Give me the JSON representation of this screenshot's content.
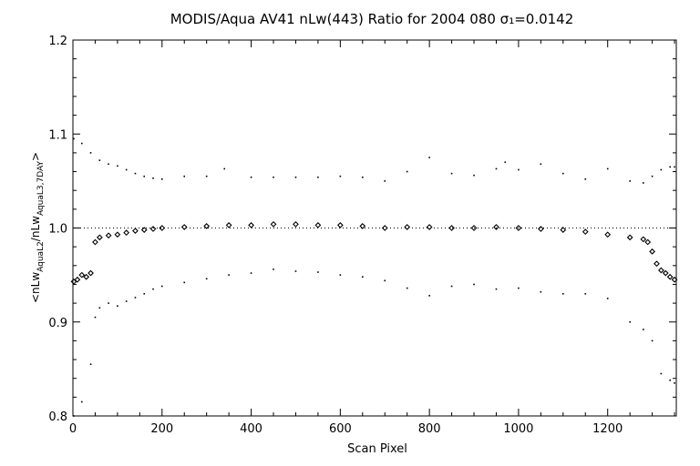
{
  "chart_data": {
    "type": "scatter",
    "title": "MODIS/Aqua AV41 nLw(443) Ratio for 2004 080 σ₁=0.0142",
    "xlabel": "Scan Pixel",
    "ylabel": "<nLw_Aqua L2 / nLw_Aqua L3 7DAY>",
    "ylabel_main_left": "<nLw",
    "ylabel_sub1": "AquaL2",
    "ylabel_mid": "/nLw",
    "ylabel_sub2": "AquaL3,7DAY",
    "ylabel_end": ">",
    "xlim": [
      0,
      1354
    ],
    "ylim": [
      0.8,
      1.2
    ],
    "xticks": [
      0,
      200,
      400,
      600,
      800,
      1000,
      1200
    ],
    "xtick_labels": [
      "0",
      "200",
      "400",
      "600",
      "800",
      "1000",
      "1200"
    ],
    "yticks": [
      0.8,
      0.9,
      1.0,
      1.1,
      1.2
    ],
    "ytick_labels": [
      "0.8",
      "0.9",
      "1.0",
      "1.1",
      "1.2"
    ],
    "reference_line": 1.0,
    "grid": false,
    "legend": "none",
    "series": [
      {
        "role": "mean",
        "marker": "diamond",
        "x": [
          2,
          10,
          20,
          30,
          40,
          50,
          60,
          80,
          100,
          120,
          140,
          160,
          180,
          200,
          250,
          300,
          350,
          400,
          450,
          500,
          550,
          600,
          650,
          700,
          750,
          800,
          850,
          900,
          950,
          1000,
          1050,
          1100,
          1150,
          1200,
          1250,
          1280,
          1290,
          1300,
          1310,
          1320,
          1330,
          1340,
          1350
        ],
        "y": [
          0.943,
          0.945,
          0.95,
          0.948,
          0.952,
          0.985,
          0.99,
          0.992,
          0.993,
          0.995,
          0.997,
          0.998,
          0.999,
          1.0,
          1.001,
          1.002,
          1.003,
          1.003,
          1.004,
          1.004,
          1.003,
          1.003,
          1.002,
          1.0,
          1.001,
          1.001,
          1.0,
          1.0,
          1.001,
          1.0,
          0.999,
          0.998,
          0.996,
          0.993,
          0.99,
          0.988,
          0.985,
          0.975,
          0.962,
          0.955,
          0.952,
          0.948,
          0.945
        ]
      },
      {
        "role": "upper",
        "marker": "dot",
        "x": [
          2,
          20,
          40,
          60,
          80,
          100,
          120,
          140,
          160,
          180,
          200,
          250,
          300,
          340,
          400,
          450,
          500,
          550,
          600,
          650,
          700,
          750,
          800,
          850,
          900,
          950,
          970,
          1000,
          1050,
          1100,
          1150,
          1200,
          1250,
          1280,
          1300,
          1320,
          1340,
          1350
        ],
        "y": [
          1.095,
          1.09,
          1.08,
          1.072,
          1.068,
          1.066,
          1.062,
          1.058,
          1.055,
          1.053,
          1.052,
          1.055,
          1.055,
          1.063,
          1.054,
          1.054,
          1.054,
          1.054,
          1.055,
          1.054,
          1.05,
          1.06,
          1.075,
          1.058,
          1.056,
          1.063,
          1.07,
          1.062,
          1.068,
          1.058,
          1.052,
          1.063,
          1.05,
          1.048,
          1.055,
          1.062,
          1.065,
          1.065
        ]
      },
      {
        "role": "lower",
        "marker": "dot",
        "x": [
          2,
          20,
          40,
          50,
          60,
          80,
          100,
          120,
          140,
          160,
          180,
          200,
          250,
          300,
          350,
          400,
          450,
          500,
          550,
          600,
          650,
          700,
          750,
          800,
          850,
          900,
          950,
          1000,
          1050,
          1100,
          1150,
          1200,
          1250,
          1280,
          1300,
          1320,
          1340,
          1350
        ],
        "y": [
          0.8,
          0.815,
          0.855,
          0.905,
          0.915,
          0.92,
          0.917,
          0.922,
          0.926,
          0.93,
          0.935,
          0.938,
          0.942,
          0.946,
          0.95,
          0.952,
          0.956,
          0.954,
          0.953,
          0.95,
          0.948,
          0.944,
          0.936,
          0.928,
          0.938,
          0.94,
          0.935,
          0.936,
          0.932,
          0.93,
          0.93,
          0.925,
          0.9,
          0.892,
          0.88,
          0.845,
          0.838,
          0.835
        ]
      }
    ]
  }
}
